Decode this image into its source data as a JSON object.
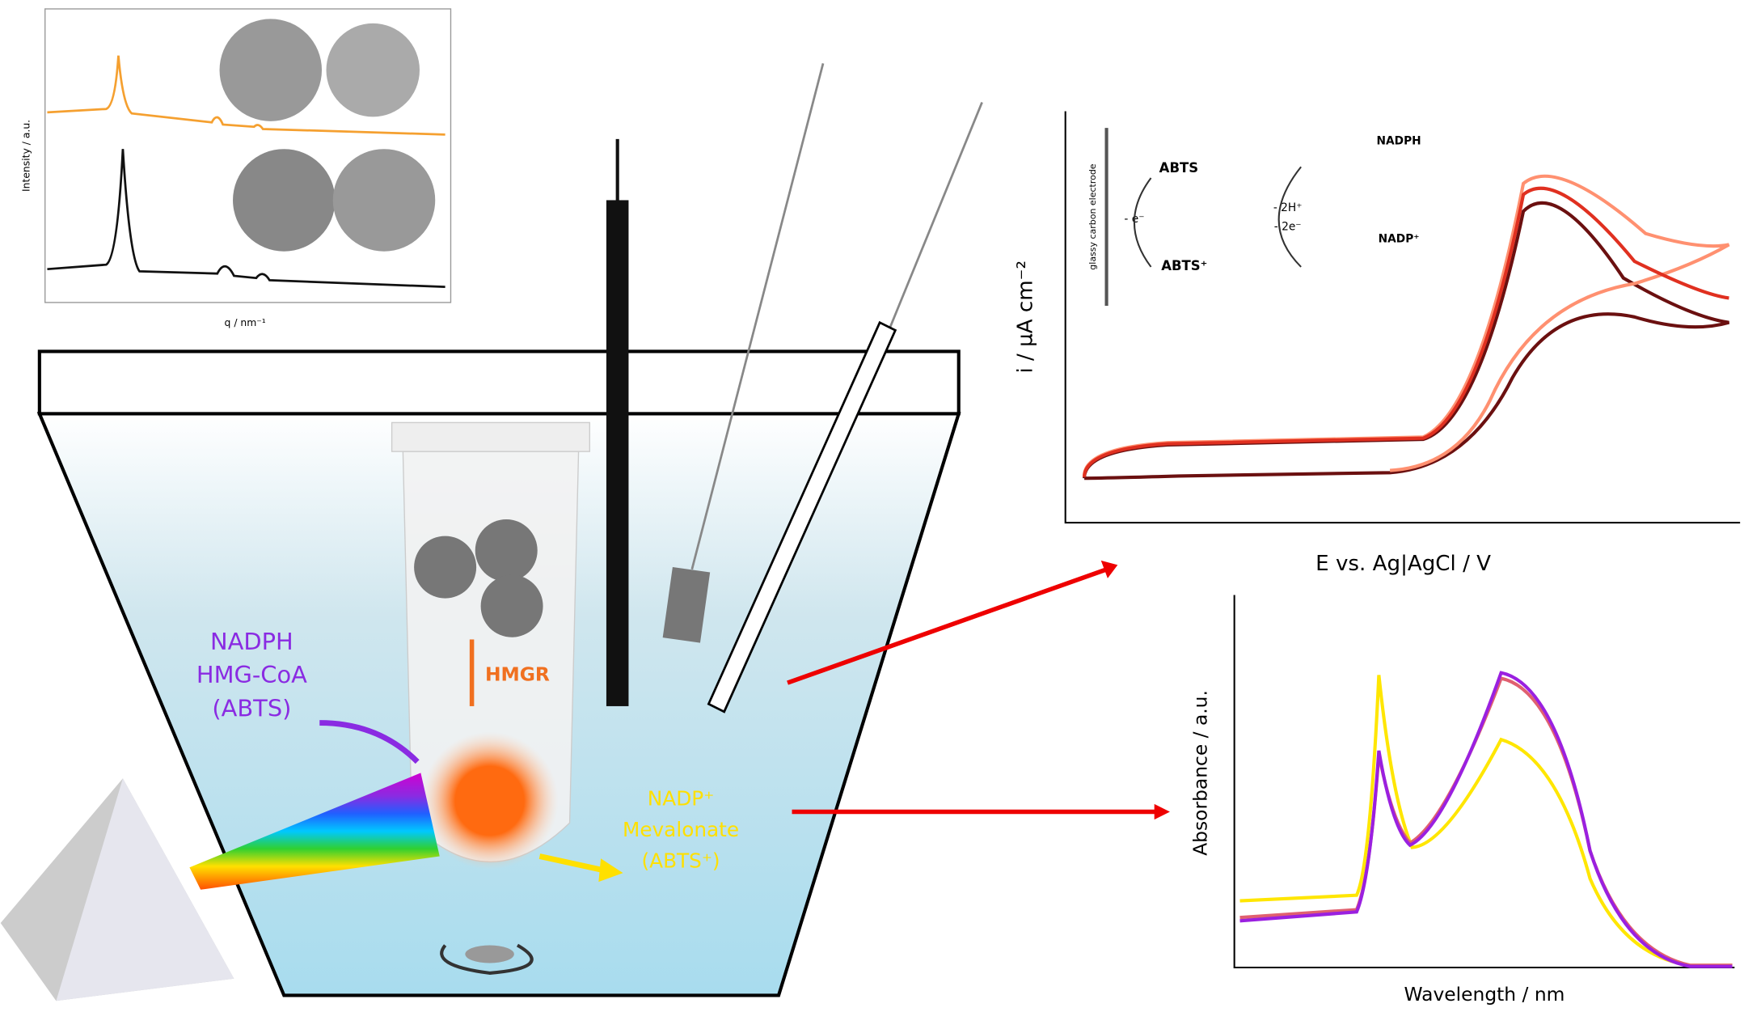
{
  "saxs_panel": {
    "y_label": "Intensity / a.u.",
    "x_label": "q / nm⁻¹"
  },
  "cv_panel": {
    "y_label": "i / µA cm⁻²",
    "x_label": "E vs. Ag|AgCl / V",
    "electrode": "glassy carbon electrode",
    "scheme": {
      "abts": "ABTS",
      "abts_ox": "ABTS⁺",
      "electron": "- e⁻",
      "protons": "- 2H⁺",
      "electrons": "- 2e⁻",
      "nadph": "NADPH",
      "nadp": "NADP⁺"
    }
  },
  "uv_panel": {
    "y_label": "Absorbance / a.u.",
    "x_label": "Wavelength / nm"
  },
  "cell": {
    "inputs": [
      "NADPH",
      "HMG-CoA",
      "(ABTS)"
    ],
    "enzyme": "HMGR",
    "outputs": [
      "NADP⁺",
      "Mevalonate",
      "(ABTS⁺)"
    ]
  }
}
